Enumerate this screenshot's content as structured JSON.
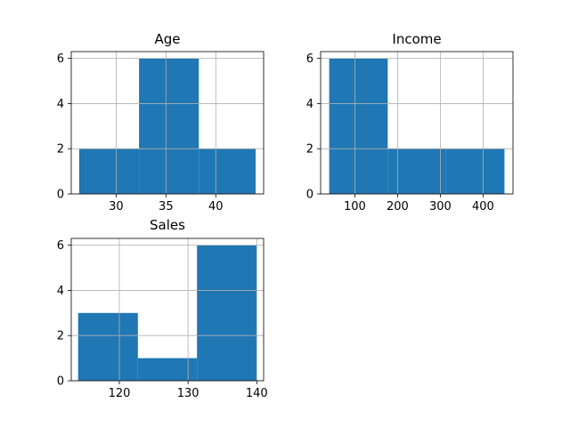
{
  "chart_data": [
    {
      "type": "bar",
      "title": "Age",
      "xlim": [
        25.5,
        44.8
      ],
      "ylim": [
        0,
        6.3
      ],
      "xticks": [
        30,
        35,
        40
      ],
      "yticks": [
        0,
        2,
        4,
        6
      ],
      "bins": [
        {
          "x0": 26.3,
          "x1": 32.3,
          "count": 2
        },
        {
          "x0": 32.3,
          "x1": 38.3,
          "count": 6
        },
        {
          "x0": 38.3,
          "x1": 44.0,
          "count": 2
        }
      ],
      "grid": true,
      "bar_color": "#1f77b4"
    },
    {
      "type": "bar",
      "title": "Income",
      "xlim": [
        20,
        470
      ],
      "ylim": [
        0,
        6.3
      ],
      "xticks": [
        100,
        200,
        300,
        400
      ],
      "yticks": [
        0,
        2,
        4,
        6
      ],
      "bins": [
        {
          "x0": 40,
          "x1": 177,
          "count": 6
        },
        {
          "x0": 177,
          "x1": 313,
          "count": 2
        },
        {
          "x0": 313,
          "x1": 450,
          "count": 2
        }
      ],
      "grid": true,
      "bar_color": "#1f77b4"
    },
    {
      "type": "bar",
      "title": "Sales",
      "xlim": [
        113,
        141
      ],
      "ylim": [
        0,
        6.3
      ],
      "xticks": [
        120,
        130,
        140
      ],
      "yticks": [
        0,
        2,
        4,
        6
      ],
      "bins": [
        {
          "x0": 114,
          "x1": 122.7,
          "count": 3
        },
        {
          "x0": 122.7,
          "x1": 131.3,
          "count": 1
        },
        {
          "x0": 131.3,
          "x1": 140,
          "count": 6
        }
      ],
      "grid": true,
      "bar_color": "#1f77b4"
    }
  ]
}
